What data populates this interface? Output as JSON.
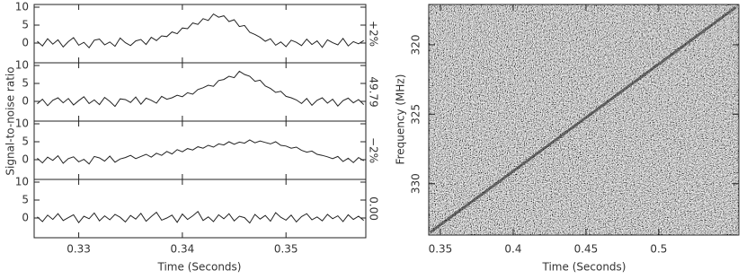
{
  "chart_data": [
    {
      "type": "line",
      "y_label": "Signal-to-noise ratio",
      "x_label": "Time (Seconds)",
      "x": [
        0.326,
        0.3265,
        0.327,
        0.3275,
        0.328,
        0.3285,
        0.329,
        0.3295,
        0.33,
        0.3305,
        0.331,
        0.3315,
        0.332,
        0.3325,
        0.333,
        0.3335,
        0.334,
        0.3345,
        0.335,
        0.3355,
        0.336,
        0.3365,
        0.337,
        0.3375,
        0.338,
        0.3385,
        0.339,
        0.3395,
        0.34,
        0.3405,
        0.341,
        0.3415,
        0.342,
        0.3425,
        0.343,
        0.3435,
        0.344,
        0.3445,
        0.345,
        0.3455,
        0.346,
        0.3465,
        0.347,
        0.3475,
        0.348,
        0.3485,
        0.349,
        0.3495,
        0.35,
        0.3505,
        0.351,
        0.3515,
        0.352,
        0.3525,
        0.353,
        0.3535,
        0.354,
        0.3545,
        0.355,
        0.3555,
        0.356,
        0.3565,
        0.357,
        0.3575
      ],
      "xlim": [
        0.3257,
        0.3577
      ],
      "xticks": [
        0.33,
        0.34,
        0.35
      ],
      "ylim": [
        -5.5,
        10.75
      ],
      "yticks": [
        0,
        5,
        10
      ],
      "series": [
        {
          "name": "+2%",
          "color": "#222222",
          "values": [
            0.5,
            -0.8,
            1.2,
            -0.3,
            0.9,
            -1.1,
            0.4,
            1.5,
            -0.6,
            0.2,
            -1.3,
            0.8,
            1.1,
            -0.5,
            0.3,
            -0.9,
            1.4,
            0.1,
            -0.7,
            0.6,
            1.0,
            -0.4,
            1.6,
            0.7,
            2.0,
            1.8,
            3.1,
            2.6,
            4.2,
            4.0,
            5.6,
            5.2,
            6.8,
            6.3,
            8.1,
            7.2,
            7.6,
            6.0,
            6.5,
            4.6,
            4.9,
            3.0,
            2.4,
            1.6,
            0.5,
            1.2,
            -0.6,
            0.3,
            -1.0,
            0.8,
            0.2,
            -0.7,
            1.1,
            -0.4,
            0.6,
            -1.2,
            0.9,
            0.1,
            -0.5,
            1.3,
            -0.8,
            0.4,
            -0.2,
            0.7
          ]
        },
        {
          "name": "49.79",
          "color": "#222222",
          "values": [
            -0.7,
            0.6,
            -1.2,
            0.3,
            1.0,
            -0.4,
            0.8,
            -1.0,
            0.2,
            1.3,
            -0.6,
            0.4,
            -0.9,
            1.1,
            0.0,
            -1.4,
            0.7,
            0.5,
            -0.3,
            1.2,
            -0.8,
            0.9,
            0.3,
            -0.5,
            1.4,
            0.6,
            1.0,
            1.7,
            1.3,
            2.4,
            2.0,
            3.3,
            3.8,
            4.5,
            4.2,
            5.8,
            6.1,
            7.0,
            6.6,
            8.4,
            7.5,
            7.0,
            5.6,
            5.9,
            4.3,
            3.6,
            2.5,
            2.8,
            1.4,
            1.0,
            0.4,
            -0.6,
            0.8,
            -1.1,
            0.3,
            1.0,
            -0.5,
            0.6,
            -1.3,
            0.2,
            0.9,
            -0.4,
            0.5,
            -0.9
          ]
        },
        {
          "name": "−2%",
          "color": "#222222",
          "values": [
            0.4,
            -0.9,
            0.7,
            -0.2,
            1.1,
            -1.0,
            0.3,
            0.8,
            -0.6,
            0.1,
            -1.2,
            0.9,
            0.5,
            -0.4,
            1.0,
            -0.7,
            0.2,
            0.6,
            1.2,
            0.3,
            0.9,
            1.5,
            0.7,
            1.8,
            1.2,
            2.3,
            1.6,
            2.8,
            2.2,
            3.1,
            2.7,
            3.6,
            3.2,
            4.0,
            3.5,
            4.4,
            4.1,
            5.0,
            4.3,
            4.9,
            4.6,
            5.5,
            4.7,
            5.2,
            4.8,
            4.4,
            5.0,
            4.0,
            3.8,
            3.2,
            3.5,
            2.6,
            2.1,
            2.4,
            1.5,
            1.2,
            0.8,
            0.3,
            0.9,
            -0.5,
            0.4,
            -0.8,
            0.6,
            -0.3
          ]
        },
        {
          "name": "0.00",
          "color": "#222222",
          "values": [
            0.3,
            -1.0,
            0.8,
            -0.4,
            1.2,
            -0.7,
            0.1,
            0.9,
            -1.3,
            0.5,
            -0.2,
            1.4,
            -0.8,
            0.6,
            -0.5,
            1.0,
            0.2,
            -1.1,
            0.7,
            -0.3,
            1.3,
            -0.9,
            0.4,
            1.6,
            -0.6,
            0.0,
            0.8,
            -1.2,
            1.1,
            -0.4,
            0.6,
            1.8,
            -0.7,
            0.3,
            -1.0,
            0.9,
            -0.2,
            1.2,
            -0.8,
            0.5,
            0.1,
            -1.4,
            1.0,
            -0.3,
            0.7,
            -0.9,
            1.5,
            0.2,
            -0.6,
            0.8,
            -1.1,
            0.4,
            1.2,
            -0.5,
            0.3,
            -0.8,
            1.0,
            -0.2,
            0.6,
            -1.0,
            0.9,
            -0.4,
            0.5,
            -0.7
          ]
        }
      ]
    },
    {
      "type": "waterfall",
      "y_label": "Frequency (MHz)",
      "x_label": "Time (Seconds)",
      "xlim": [
        0.342,
        0.555
      ],
      "xticks": [
        0.35,
        0.4,
        0.45,
        0.5
      ],
      "ylim": [
        317.1,
        333.7
      ],
      "y_inverted": true,
      "yticks": [
        320,
        325,
        330
      ],
      "track": {
        "x": [
          0.343,
          0.553
        ],
        "y": [
          333.5,
          317.3
        ],
        "color": "#111111"
      }
    }
  ]
}
